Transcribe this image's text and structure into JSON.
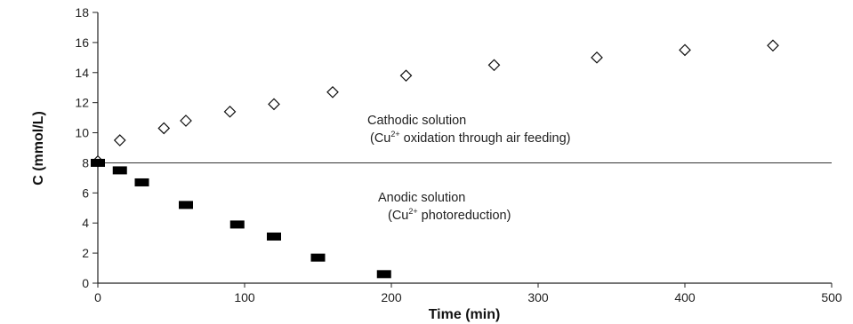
{
  "chart_data": {
    "type": "scatter",
    "xlabel": "Time (min)",
    "ylabel": "C (mmol/L)",
    "xlim": [
      0,
      500
    ],
    "ylim": [
      0,
      18
    ],
    "xticks": [
      0,
      100,
      200,
      300,
      400,
      500
    ],
    "yticks": [
      0,
      2,
      4,
      6,
      8,
      10,
      12,
      14,
      16,
      18
    ],
    "grid": false,
    "legend": "none",
    "series": [
      {
        "marker": "diamond-open",
        "x": [
          0,
          15,
          45,
          60,
          90,
          120,
          160,
          210,
          270,
          340,
          400,
          460
        ],
        "y": [
          8.1,
          9.5,
          10.3,
          10.8,
          11.4,
          11.9,
          12.7,
          13.8,
          14.5,
          15.0,
          15.5,
          15.8
        ]
      },
      {
        "marker": "square-filled",
        "x": [
          0,
          15,
          30,
          60,
          95,
          120,
          150,
          195
        ],
        "y": [
          8.0,
          7.5,
          6.7,
          5.2,
          3.9,
          3.1,
          1.7,
          0.6
        ]
      }
    ],
    "reference_line": {
      "y": 8.0
    },
    "annotations": [
      {
        "text": "Cathodic solution",
        "sub": "(Cu",
        "sup": "2+",
        "rest": " oxidation through air feeding)"
      },
      {
        "text": "Anodic solution",
        "sub": "(Cu",
        "sup": "2+",
        "rest": " photoreduction)"
      }
    ]
  }
}
